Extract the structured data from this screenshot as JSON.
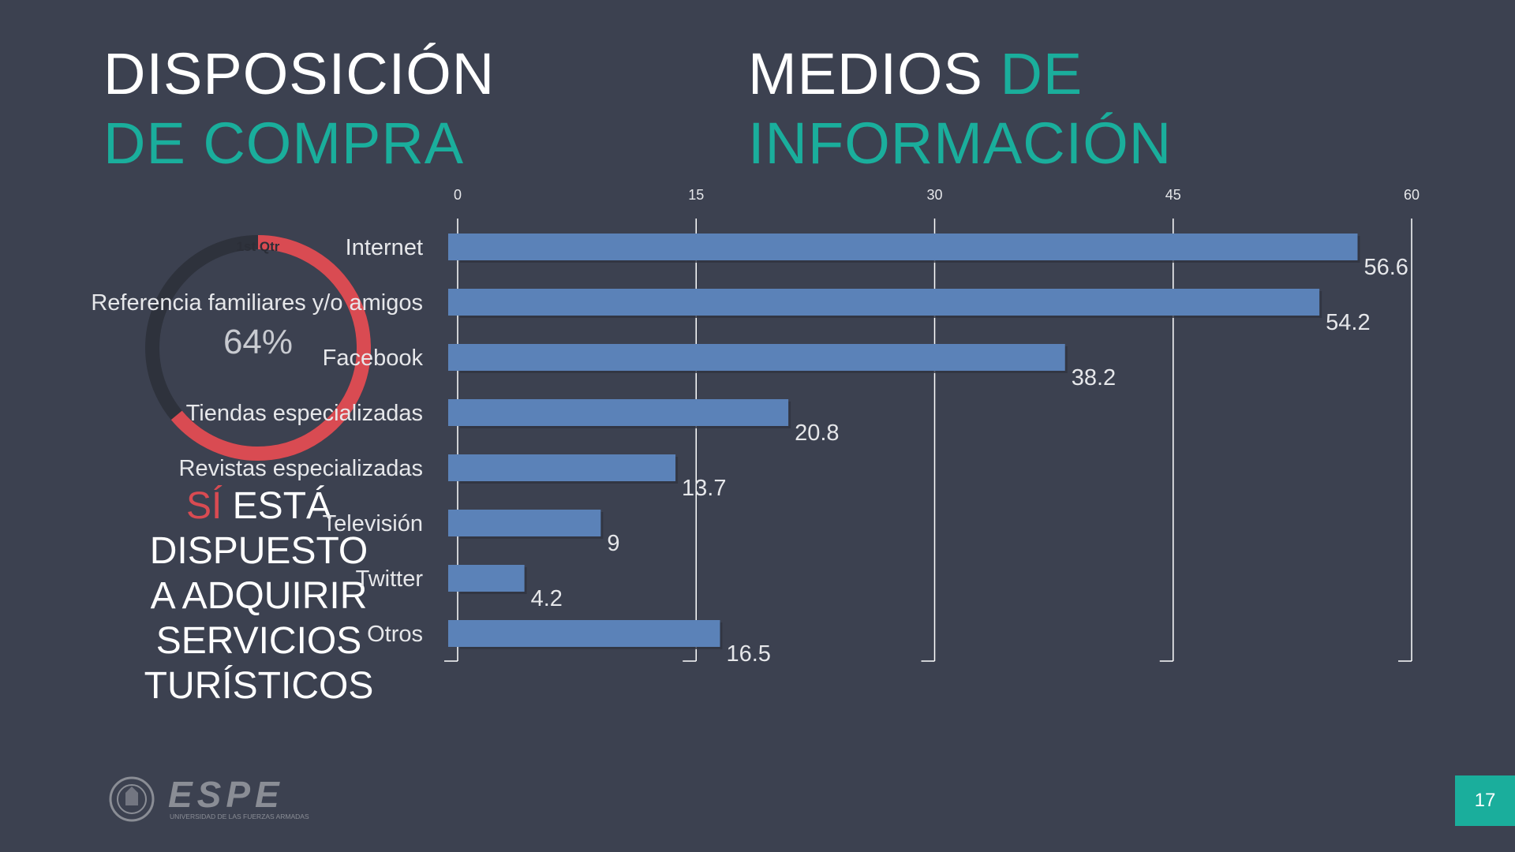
{
  "slide": {
    "title_left_line1": "DISPOSICIÓN",
    "title_left_line2": "DE COMPRA",
    "title_right_word1": "MEDIOS",
    "title_right_word2": "DE",
    "title_right_line2": "INFORMACIÓN",
    "page_number": "17",
    "colors": {
      "background": "#3c4150",
      "accent_teal": "#1aae9c",
      "accent_red": "#d94b52",
      "bar_blue": "#5b82b8",
      "donut_track": "#2e323c"
    }
  },
  "donut": {
    "label": "1st Qtr",
    "percent_text": "64%",
    "value": 64
  },
  "callout": {
    "highlight": "SÍ",
    "line1_rest": "ESTÁ",
    "line2": "DISPUESTO",
    "line3": "A ADQUIRIR",
    "line4": "SERVICIOS",
    "line5": "TURÍSTICOS"
  },
  "logo": {
    "name": "ESPE",
    "subtitle": "UNIVERSIDAD DE LAS FUERZAS ARMADAS"
  },
  "chart_data": [
    {
      "type": "pie",
      "variant": "donut",
      "categories": [
        "1st Qtr"
      ],
      "values": [
        64
      ],
      "label": "64%"
    },
    {
      "type": "bar",
      "orientation": "horizontal",
      "categories": [
        "Internet",
        "Referencia familiares y/o amigos",
        "Facebook",
        "Tiendas especializadas",
        "Revistas especializadas",
        "Televisión",
        "Twitter",
        "Otros"
      ],
      "values": [
        56.6,
        54.2,
        38.2,
        20.8,
        13.7,
        9,
        4.2,
        16.5
      ],
      "data_labels": [
        "56.6",
        "54.2",
        "38.2",
        "20.8",
        "13.7",
        "9",
        "4.2",
        "16.5"
      ],
      "xlim": [
        0,
        60
      ],
      "xticks": [
        "0",
        "15",
        "30",
        "45",
        "60"
      ],
      "xaxis_position": "top",
      "grid": true,
      "legend": false
    }
  ]
}
